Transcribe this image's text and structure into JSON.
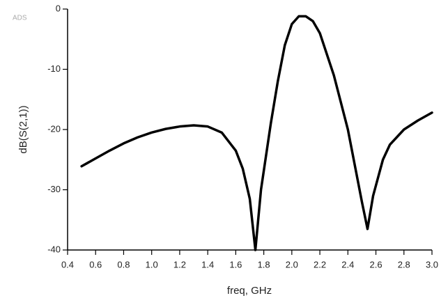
{
  "chart_data": {
    "type": "line",
    "watermark": "ADS",
    "x_label": "freq, GHz",
    "y_label": "dB(S(2,1))",
    "color": "#000000",
    "x": [
      0.5,
      0.6,
      0.7,
      0.8,
      0.9,
      1.0,
      1.1,
      1.2,
      1.3,
      1.4,
      1.5,
      1.6,
      1.65,
      1.7,
      1.74,
      1.78,
      1.85,
      1.9,
      1.95,
      2.0,
      2.05,
      2.1,
      2.15,
      2.2,
      2.3,
      2.4,
      2.45,
      2.5,
      2.54,
      2.58,
      2.65,
      2.7,
      2.8,
      2.9,
      3.0
    ],
    "values": [
      -26.1,
      -24.8,
      -23.5,
      -22.3,
      -21.3,
      -20.5,
      -19.9,
      -19.5,
      -19.3,
      -19.5,
      -20.5,
      -23.5,
      -26.5,
      -31.5,
      -40,
      -30,
      -19,
      -12,
      -6,
      -2.5,
      -1.2,
      -1.2,
      -2,
      -4,
      -11,
      -20,
      -26,
      -32,
      -36.5,
      -31,
      -25,
      -22.5,
      -20,
      -18.5,
      -17.2
    ],
    "xlim": [
      0.4,
      3.0
    ],
    "ylim": [
      -40,
      0
    ],
    "xticks": [
      0.4,
      0.6,
      0.8,
      {
        "value": 1.0,
        "label": "1.0"
      },
      1.2,
      1.4,
      1.6,
      1.8,
      {
        "value": 2.0,
        "label": "2.0"
      },
      2.2,
      2.4,
      2.6,
      2.8,
      {
        "value": 3.0,
        "label": "3.0"
      }
    ],
    "yticks": [
      0,
      -10,
      -20,
      -30,
      -40
    ]
  }
}
